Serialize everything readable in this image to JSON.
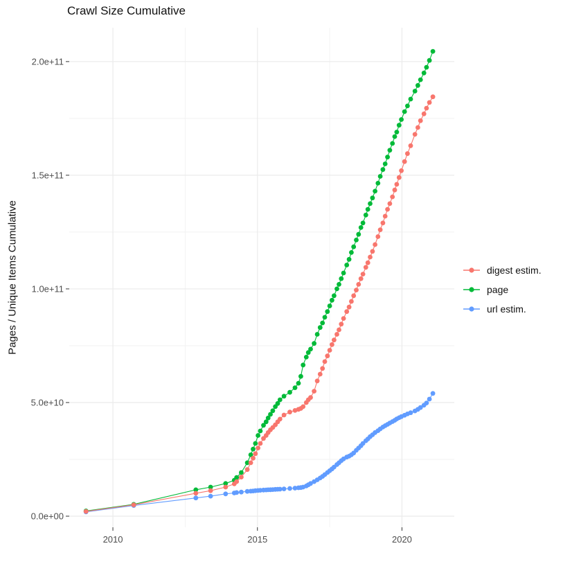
{
  "title": "Crawl Size Cumulative",
  "legend": {
    "items": [
      {
        "label": "digest estim.",
        "color": "#F8766D"
      },
      {
        "label": "page",
        "color": "#00BA38"
      },
      {
        "label": "url estim.",
        "color": "#619CFF"
      }
    ]
  },
  "colors": {
    "grid_major": "#EBEBEB",
    "grid_minor": "#F2F2F2",
    "tick_mark": "#333333",
    "tick_label": "#4D4D4D",
    "background": "#FFFFFF"
  },
  "chart_data": {
    "type": "scatter",
    "title": "Crawl Size Cumulative",
    "xlabel": "",
    "ylabel": "Pages / Unique Items Cumulative",
    "xlim": [
      2008.49,
      2021.81
    ],
    "ylim": [
      -4880000000.0,
      214900000000.0
    ],
    "x_ticks": [
      {
        "value": 2010,
        "label": "2010"
      },
      {
        "value": 2015,
        "label": "2015"
      },
      {
        "value": 2020,
        "label": "2020"
      }
    ],
    "x_minor_breaks": [
      2012.5,
      2017.5
    ],
    "y_ticks": [
      {
        "value": 0.0,
        "label": "0.0e+00"
      },
      {
        "value": 50000000000.0,
        "label": "5.0e+10"
      },
      {
        "value": 100000000000.0,
        "label": "1.0e+11"
      },
      {
        "value": 150000000000.0,
        "label": "1.5e+11"
      },
      {
        "value": 200000000000.0,
        "label": "2.0e+11"
      }
    ],
    "y_minor_breaks": [
      25000000000.0,
      75000000000.0,
      125000000000.0,
      175000000000.0
    ],
    "grid": true,
    "legend_position": "right",
    "series": [
      {
        "name": "url estim.",
        "color": "#619CFF",
        "points": [
          [
            2009.07,
            1900000000.0
          ],
          [
            2010.72,
            4700000000.0
          ],
          [
            2012.87,
            8000000000.0
          ],
          [
            2013.38,
            8800000000.0
          ],
          [
            2013.9,
            9800000000.0
          ],
          [
            2014.2,
            10200000000.0
          ],
          [
            2014.28,
            10400000000.0
          ],
          [
            2014.44,
            10600000000.0
          ],
          [
            2014.65,
            10900000000.0
          ],
          [
            2014.77,
            11000000000.0
          ],
          [
            2014.85,
            11100000000.0
          ],
          [
            2014.93,
            11200000000.0
          ],
          [
            2015.02,
            11300000000.0
          ],
          [
            2015.1,
            11400000000.0
          ],
          [
            2015.21,
            11500000000.0
          ],
          [
            2015.3,
            11550000000.0
          ],
          [
            2015.37,
            11600000000.0
          ],
          [
            2015.45,
            11650000000.0
          ],
          [
            2015.53,
            11700000000.0
          ],
          [
            2015.62,
            11800000000.0
          ],
          [
            2015.7,
            11850000000.0
          ],
          [
            2015.78,
            11900000000.0
          ],
          [
            2015.92,
            12000000000.0
          ],
          [
            2016.12,
            12200000000.0
          ],
          [
            2016.3,
            12350000000.0
          ],
          [
            2016.42,
            12500000000.0
          ],
          [
            2016.5,
            12600000000.0
          ],
          [
            2016.58,
            12800000000.0
          ],
          [
            2016.69,
            13300000000.0
          ],
          [
            2016.76,
            13800000000.0
          ],
          [
            2016.84,
            14400000000.0
          ],
          [
            2016.96,
            15200000000.0
          ],
          [
            2017.07,
            16000000000.0
          ],
          [
            2017.17,
            16800000000.0
          ],
          [
            2017.25,
            17500000000.0
          ],
          [
            2017.33,
            18300000000.0
          ],
          [
            2017.42,
            19200000000.0
          ],
          [
            2017.5,
            20000000000.0
          ],
          [
            2017.58,
            20800000000.0
          ],
          [
            2017.65,
            21600000000.0
          ],
          [
            2017.75,
            22700000000.0
          ],
          [
            2017.82,
            23500000000.0
          ],
          [
            2017.9,
            24400000000.0
          ],
          [
            2017.98,
            25200000000.0
          ],
          [
            2018.09,
            26000000000.0
          ],
          [
            2018.17,
            26400000000.0
          ],
          [
            2018.25,
            27000000000.0
          ],
          [
            2018.33,
            27800000000.0
          ],
          [
            2018.42,
            29000000000.0
          ],
          [
            2018.5,
            30000000000.0
          ],
          [
            2018.58,
            31000000000.0
          ],
          [
            2018.65,
            32000000000.0
          ],
          [
            2018.75,
            33200000000.0
          ],
          [
            2018.82,
            34000000000.0
          ],
          [
            2018.9,
            35000000000.0
          ],
          [
            2018.98,
            35800000000.0
          ],
          [
            2019.07,
            36800000000.0
          ],
          [
            2019.17,
            37600000000.0
          ],
          [
            2019.25,
            38400000000.0
          ],
          [
            2019.34,
            39200000000.0
          ],
          [
            2019.42,
            39800000000.0
          ],
          [
            2019.5,
            40400000000.0
          ],
          [
            2019.58,
            41000000000.0
          ],
          [
            2019.67,
            41600000000.0
          ],
          [
            2019.75,
            42200000000.0
          ],
          [
            2019.82,
            42800000000.0
          ],
          [
            2019.9,
            43300000000.0
          ],
          [
            2019.98,
            43800000000.0
          ],
          [
            2020.09,
            44400000000.0
          ],
          [
            2020.19,
            45000000000.0
          ],
          [
            2020.3,
            45500000000.0
          ],
          [
            2020.45,
            46300000000.0
          ],
          [
            2020.55,
            47000000000.0
          ],
          [
            2020.64,
            47800000000.0
          ],
          [
            2020.76,
            48800000000.0
          ],
          [
            2020.85,
            49800000000.0
          ],
          [
            2020.95,
            51500000000.0
          ],
          [
            2021.07,
            54000000000.0
          ]
        ]
      },
      {
        "name": "page",
        "color": "#00BA38",
        "points": [
          [
            2009.07,
            2300000000.0
          ],
          [
            2010.72,
            5200000000.0
          ],
          [
            2012.87,
            11600000000.0
          ],
          [
            2013.38,
            12800000000.0
          ],
          [
            2013.9,
            14400000000.0
          ],
          [
            2014.2,
            15800000000.0
          ],
          [
            2014.28,
            17000000000.0
          ],
          [
            2014.44,
            19200000000.0
          ],
          [
            2014.65,
            23500000000.0
          ],
          [
            2014.77,
            27000000000.0
          ],
          [
            2014.85,
            29500000000.0
          ],
          [
            2014.93,
            32000000000.0
          ],
          [
            2015.02,
            35500000000.0
          ],
          [
            2015.1,
            37500000000.0
          ],
          [
            2015.21,
            40000000000.0
          ],
          [
            2015.3,
            41500000000.0
          ],
          [
            2015.37,
            43200000000.0
          ],
          [
            2015.45,
            44800000000.0
          ],
          [
            2015.53,
            46400000000.0
          ],
          [
            2015.62,
            48200000000.0
          ],
          [
            2015.7,
            49600000000.0
          ],
          [
            2015.78,
            51200000000.0
          ],
          [
            2015.92,
            52800000000.0
          ],
          [
            2016.12,
            54500000000.0
          ],
          [
            2016.3,
            56500000000.0
          ],
          [
            2016.42,
            58500000000.0
          ],
          [
            2016.5,
            61500000000.0
          ],
          [
            2016.58,
            66500000000.0
          ],
          [
            2016.69,
            70000000000.0
          ],
          [
            2016.76,
            72000000000.0
          ],
          [
            2016.84,
            73500000000.0
          ],
          [
            2016.96,
            76000000000.0
          ],
          [
            2017.07,
            80000000000.0
          ],
          [
            2017.17,
            83000000000.0
          ],
          [
            2017.25,
            85000000000.0
          ],
          [
            2017.33,
            87500000000.0
          ],
          [
            2017.42,
            90000000000.0
          ],
          [
            2017.5,
            92500000000.0
          ],
          [
            2017.58,
            95000000000.0
          ],
          [
            2017.65,
            97000000000.0
          ],
          [
            2017.75,
            100000000000.0
          ],
          [
            2017.82,
            102000000000.0
          ],
          [
            2017.9,
            104500000000.0
          ],
          [
            2017.98,
            107000000000.0
          ],
          [
            2018.09,
            110500000000.0
          ],
          [
            2018.17,
            113000000000.0
          ],
          [
            2018.25,
            116000000000.0
          ],
          [
            2018.33,
            118500000000.0
          ],
          [
            2018.42,
            121500000000.0
          ],
          [
            2018.5,
            124000000000.0
          ],
          [
            2018.58,
            127000000000.0
          ],
          [
            2018.65,
            129000000000.0
          ],
          [
            2018.75,
            132500000000.0
          ],
          [
            2018.82,
            135000000000.0
          ],
          [
            2018.9,
            137500000000.0
          ],
          [
            2018.98,
            140000000000.0
          ],
          [
            2019.07,
            143000000000.0
          ],
          [
            2019.17,
            146500000000.0
          ],
          [
            2019.25,
            149500000000.0
          ],
          [
            2019.34,
            152500000000.0
          ],
          [
            2019.42,
            155000000000.0
          ],
          [
            2019.5,
            158000000000.0
          ],
          [
            2019.58,
            161000000000.0
          ],
          [
            2019.67,
            164000000000.0
          ],
          [
            2019.75,
            167000000000.0
          ],
          [
            2019.82,
            169000000000.0
          ],
          [
            2019.9,
            172000000000.0
          ],
          [
            2019.98,
            174500000000.0
          ],
          [
            2020.09,
            178000000000.0
          ],
          [
            2020.19,
            180500000000.0
          ],
          [
            2020.3,
            183500000000.0
          ],
          [
            2020.45,
            187000000000.0
          ],
          [
            2020.55,
            189500000000.0
          ],
          [
            2020.64,
            192000000000.0
          ],
          [
            2020.76,
            195000000000.0
          ],
          [
            2020.85,
            197500000000.0
          ],
          [
            2020.95,
            200500000000.0
          ],
          [
            2021.07,
            204500000000.0
          ]
        ]
      },
      {
        "name": "digest estim.",
        "color": "#F8766D",
        "points": [
          [
            2009.07,
            2100000000.0
          ],
          [
            2010.72,
            5000000000.0
          ],
          [
            2012.87,
            10100000000.0
          ],
          [
            2013.38,
            11200000000.0
          ],
          [
            2013.9,
            12800000000.0
          ],
          [
            2014.2,
            14200000000.0
          ],
          [
            2014.28,
            15200000000.0
          ],
          [
            2014.44,
            17200000000.0
          ],
          [
            2014.65,
            20500000000.0
          ],
          [
            2014.77,
            23500000000.0
          ],
          [
            2014.85,
            25500000000.0
          ],
          [
            2014.93,
            27500000000.0
          ],
          [
            2015.02,
            30000000000.0
          ],
          [
            2015.1,
            32000000000.0
          ],
          [
            2015.21,
            34200000000.0
          ],
          [
            2015.3,
            35500000000.0
          ],
          [
            2015.37,
            36800000000.0
          ],
          [
            2015.45,
            38000000000.0
          ],
          [
            2015.53,
            39000000000.0
          ],
          [
            2015.62,
            40200000000.0
          ],
          [
            2015.7,
            41500000000.0
          ],
          [
            2015.78,
            42700000000.0
          ],
          [
            2015.92,
            44500000000.0
          ],
          [
            2016.12,
            45800000000.0
          ],
          [
            2016.3,
            46500000000.0
          ],
          [
            2016.42,
            47000000000.0
          ],
          [
            2016.5,
            47400000000.0
          ],
          [
            2016.58,
            48200000000.0
          ],
          [
            2016.69,
            50000000000.0
          ],
          [
            2016.76,
            51200000000.0
          ],
          [
            2016.84,
            52200000000.0
          ],
          [
            2016.96,
            55000000000.0
          ],
          [
            2017.07,
            59500000000.0
          ],
          [
            2017.17,
            62500000000.0
          ],
          [
            2017.25,
            65000000000.0
          ],
          [
            2017.33,
            68000000000.0
          ],
          [
            2017.42,
            70500000000.0
          ],
          [
            2017.5,
            73000000000.0
          ],
          [
            2017.58,
            75500000000.0
          ],
          [
            2017.65,
            77500000000.0
          ],
          [
            2017.75,
            80000000000.0
          ],
          [
            2017.82,
            82000000000.0
          ],
          [
            2017.9,
            84500000000.0
          ],
          [
            2017.98,
            87000000000.0
          ],
          [
            2018.09,
            90000000000.0
          ],
          [
            2018.17,
            92000000000.0
          ],
          [
            2018.25,
            94500000000.0
          ],
          [
            2018.33,
            97000000000.0
          ],
          [
            2018.42,
            99500000000.0
          ],
          [
            2018.5,
            102000000000.0
          ],
          [
            2018.58,
            104500000000.0
          ],
          [
            2018.65,
            106500000000.0
          ],
          [
            2018.75,
            109500000000.0
          ],
          [
            2018.82,
            111500000000.0
          ],
          [
            2018.9,
            114000000000.0
          ],
          [
            2018.98,
            116500000000.0
          ],
          [
            2019.07,
            119500000000.0
          ],
          [
            2019.17,
            123000000000.0
          ],
          [
            2019.25,
            126000000000.0
          ],
          [
            2019.34,
            129000000000.0
          ],
          [
            2019.42,
            132000000000.0
          ],
          [
            2019.5,
            135000000000.0
          ],
          [
            2019.58,
            137500000000.0
          ],
          [
            2019.67,
            140500000000.0
          ],
          [
            2019.75,
            143500000000.0
          ],
          [
            2019.82,
            146000000000.0
          ],
          [
            2019.9,
            149000000000.0
          ],
          [
            2019.98,
            152000000000.0
          ],
          [
            2020.09,
            156000000000.0
          ],
          [
            2020.19,
            159500000000.0
          ],
          [
            2020.3,
            163000000000.0
          ],
          [
            2020.45,
            168000000000.0
          ],
          [
            2020.55,
            171000000000.0
          ],
          [
            2020.64,
            174000000000.0
          ],
          [
            2020.76,
            177000000000.0
          ],
          [
            2020.85,
            179500000000.0
          ],
          [
            2020.95,
            182000000000.0
          ],
          [
            2021.07,
            184500000000.0
          ]
        ]
      }
    ]
  }
}
